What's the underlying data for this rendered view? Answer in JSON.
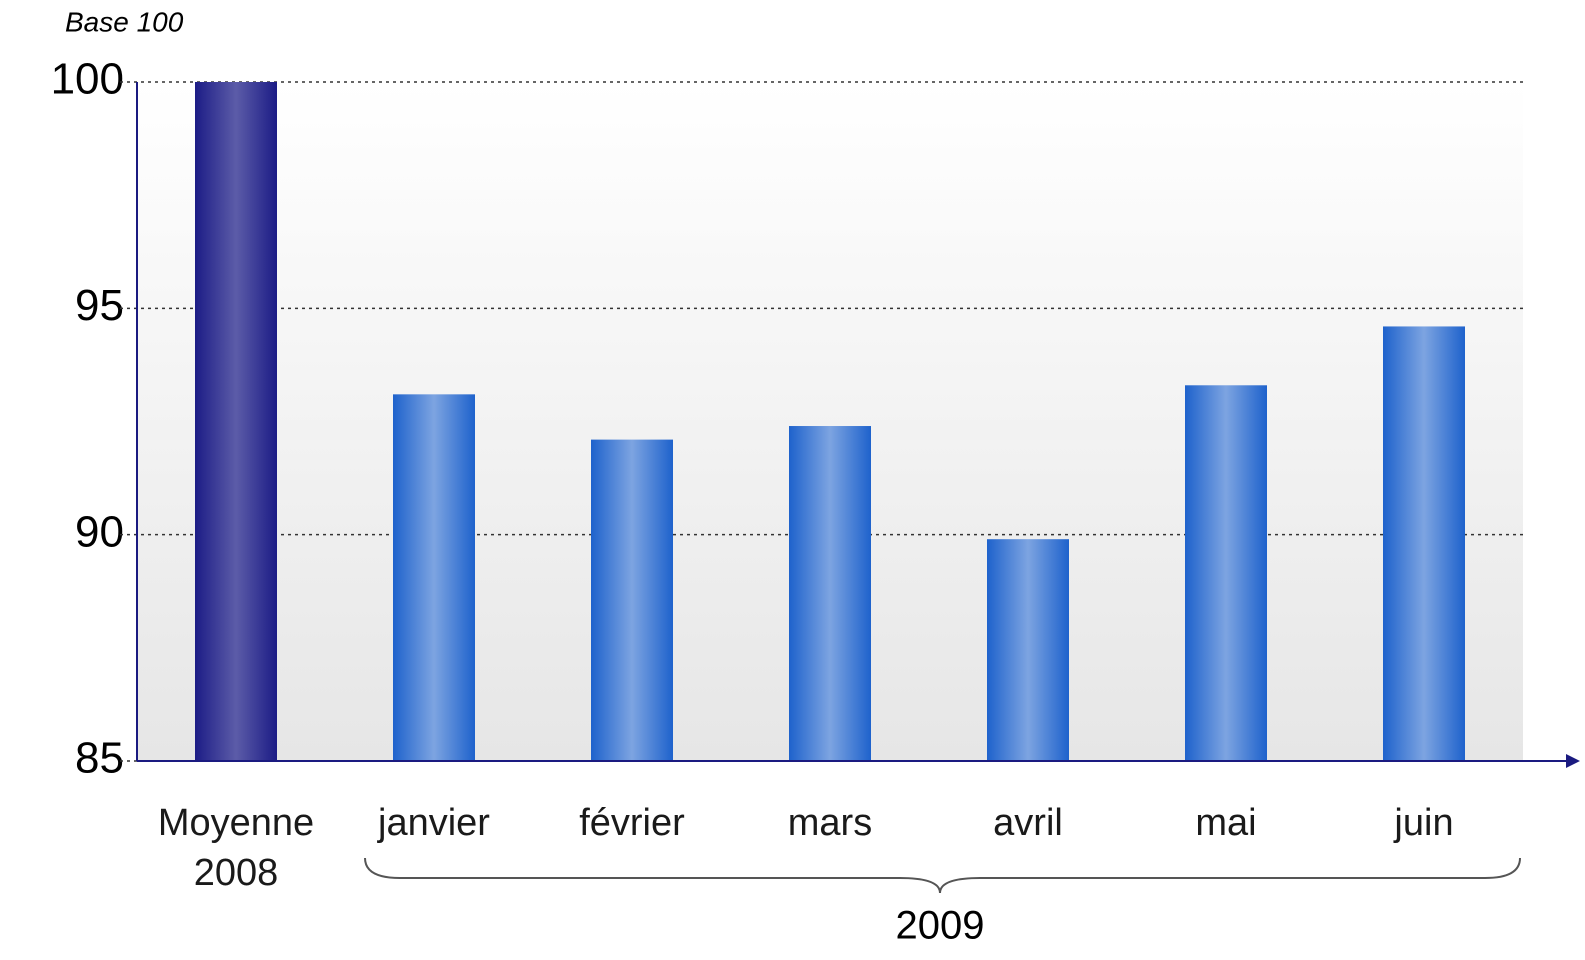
{
  "chart_data": {
    "type": "bar",
    "annotations": [
      "Base 100",
      "2009"
    ],
    "categories": [
      "Moyenne 2008",
      "janvier",
      "février",
      "mars",
      "avril",
      "mai",
      "juin"
    ],
    "values": [
      100,
      93.1,
      92.1,
      92.4,
      89.9,
      93.3,
      94.6
    ],
    "colors": [
      "#1c1c86",
      "#1e62cc",
      "#1e62cc",
      "#1e62cc",
      "#1e62cc",
      "#1e62cc",
      "#1e62cc"
    ],
    "ylim": [
      85,
      100
    ],
    "yticks": [
      85,
      90,
      95,
      100
    ],
    "grid": true
  }
}
